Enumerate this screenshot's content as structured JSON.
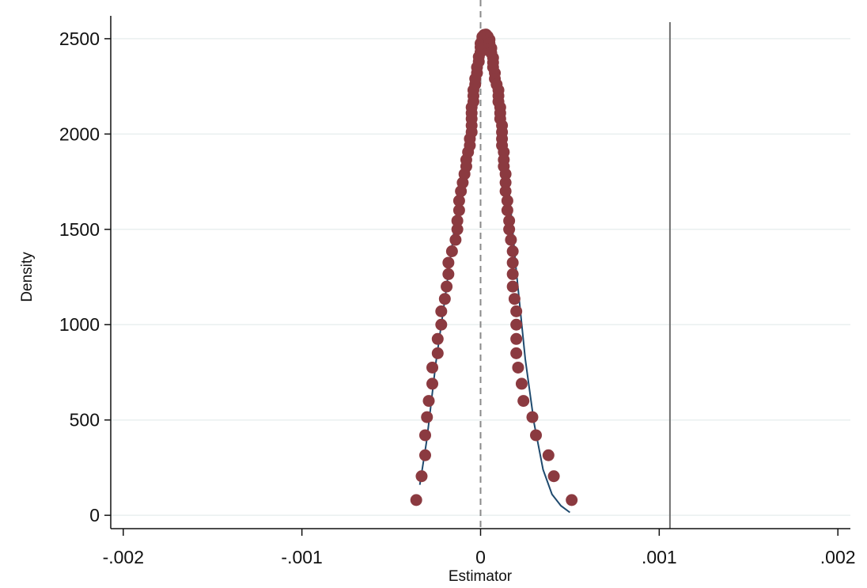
{
  "chart_data": {
    "type": "scatter",
    "title": "",
    "xlabel": "Estimator",
    "ylabel": "Density",
    "xlim": [
      -0.00207,
      0.00207
    ],
    "ylim": [
      -70,
      2620
    ],
    "x_ticks": [
      -0.002,
      -0.001,
      0,
      0.001,
      0.002
    ],
    "x_tick_labels": [
      "-.002",
      "-.001",
      "0",
      ".001",
      ".002"
    ],
    "y_ticks": [
      0,
      500,
      1000,
      1500,
      2000,
      2500
    ],
    "y_tick_labels": [
      "0",
      "500",
      "1000",
      "1500",
      "2000",
      "2500"
    ],
    "grid": "horizontal",
    "legend": "none",
    "colors": {
      "markers": "#8b3a40",
      "curve": "#1f4a6e",
      "reference_line": "#707070",
      "zero_line": "#8a8a8a",
      "grid": "#e9efef"
    },
    "reference_lines": {
      "solid_vertical_x": 0.00106,
      "dashed_vertical_x": 0
    },
    "series": [
      {
        "type": "scatter",
        "points": [
          [
            -0.00036,
            80
          ],
          [
            -0.00033,
            205
          ],
          [
            -0.00031,
            315
          ],
          [
            -0.00031,
            420
          ],
          [
            -0.0003,
            515
          ],
          [
            -0.00029,
            600
          ],
          [
            -0.00027,
            690
          ],
          [
            -0.00027,
            775
          ],
          [
            -0.00024,
            850
          ],
          [
            -0.00024,
            925
          ],
          [
            -0.00022,
            1000
          ],
          [
            -0.00022,
            1070
          ],
          [
            -0.0002,
            1135
          ],
          [
            -0.00019,
            1200
          ],
          [
            -0.00018,
            1265
          ],
          [
            -0.00018,
            1325
          ],
          [
            -0.00016,
            1385
          ],
          [
            -0.00014,
            1445
          ],
          [
            -0.00013,
            1500
          ],
          [
            -0.00013,
            1545
          ],
          [
            -0.00012,
            1600
          ],
          [
            -0.00012,
            1650
          ],
          [
            -0.00011,
            1700
          ],
          [
            -0.0001,
            1745
          ],
          [
            -9e-05,
            1790
          ],
          [
            -8e-05,
            1830
          ],
          [
            -8e-05,
            1865
          ],
          [
            -7e-05,
            1905
          ],
          [
            -6e-05,
            1940
          ],
          [
            -6e-05,
            1975
          ],
          [
            -5e-05,
            2010
          ],
          [
            -5e-05,
            2045
          ],
          [
            -5e-05,
            2080
          ],
          [
            -5e-05,
            2110
          ],
          [
            -5e-05,
            2140
          ],
          [
            -4e-05,
            2170
          ],
          [
            -4e-05,
            2200
          ],
          [
            -4e-05,
            2230
          ],
          [
            -3e-05,
            2260
          ],
          [
            -3e-05,
            2290
          ],
          [
            -2e-05,
            2320
          ],
          [
            -2e-05,
            2350
          ],
          [
            -1e-05,
            2380
          ],
          [
            -1e-05,
            2405
          ],
          [
            0.0,
            2430
          ],
          [
            0.0,
            2455
          ],
          [
            0.0,
            2475
          ],
          [
            1e-05,
            2495
          ],
          [
            1e-05,
            2510
          ],
          [
            2e-05,
            2520
          ],
          [
            3e-05,
            2522
          ],
          [
            4e-05,
            2512
          ],
          [
            5e-05,
            2495
          ],
          [
            5e-05,
            2475
          ],
          [
            6e-05,
            2450
          ],
          [
            6e-05,
            2425
          ],
          [
            7e-05,
            2400
          ],
          [
            7e-05,
            2375
          ],
          [
            7e-05,
            2350
          ],
          [
            8e-05,
            2320
          ],
          [
            8e-05,
            2290
          ],
          [
            9e-05,
            2260
          ],
          [
            0.0001,
            2230
          ],
          [
            0.0001,
            2200
          ],
          [
            0.0001,
            2170
          ],
          [
            0.00011,
            2140
          ],
          [
            0.00011,
            2110
          ],
          [
            0.00011,
            2080
          ],
          [
            0.00012,
            2045
          ],
          [
            0.00012,
            2010
          ],
          [
            0.00012,
            1975
          ],
          [
            0.00012,
            1940
          ],
          [
            0.00013,
            1905
          ],
          [
            0.00013,
            1865
          ],
          [
            0.00013,
            1830
          ],
          [
            0.00014,
            1790
          ],
          [
            0.00014,
            1745
          ],
          [
            0.00014,
            1700
          ],
          [
            0.00015,
            1650
          ],
          [
            0.00015,
            1600
          ],
          [
            0.00016,
            1545
          ],
          [
            0.00016,
            1500
          ],
          [
            0.00017,
            1445
          ],
          [
            0.00018,
            1385
          ],
          [
            0.00018,
            1325
          ],
          [
            0.00018,
            1265
          ],
          [
            0.00018,
            1200
          ],
          [
            0.00019,
            1135
          ],
          [
            0.0002,
            1070
          ],
          [
            0.0002,
            1000
          ],
          [
            0.0002,
            925
          ],
          [
            0.0002,
            850
          ],
          [
            0.00021,
            775
          ],
          [
            0.00023,
            690
          ],
          [
            0.00024,
            600
          ],
          [
            0.00029,
            515
          ],
          [
            0.00031,
            420
          ],
          [
            0.00038,
            315
          ],
          [
            0.00041,
            205
          ],
          [
            0.00051,
            80
          ]
        ]
      },
      {
        "type": "line",
        "points": [
          [
            -0.00034,
            160
          ],
          [
            -0.0003,
            400
          ],
          [
            -0.00025,
            800
          ],
          [
            -0.0002,
            1130
          ],
          [
            -0.00015,
            1480
          ],
          [
            -0.0001,
            1810
          ],
          [
            -5e-05,
            2150
          ],
          [
            0.0,
            2400
          ],
          [
            5e-05,
            2460
          ],
          [
            0.0001,
            2230
          ],
          [
            0.00015,
            1800
          ],
          [
            0.0002,
            1280
          ],
          [
            0.00025,
            820
          ],
          [
            0.0003,
            480
          ],
          [
            0.00035,
            240
          ],
          [
            0.0004,
            110
          ],
          [
            0.00045,
            50
          ],
          [
            0.0005,
            15
          ]
        ]
      }
    ]
  }
}
